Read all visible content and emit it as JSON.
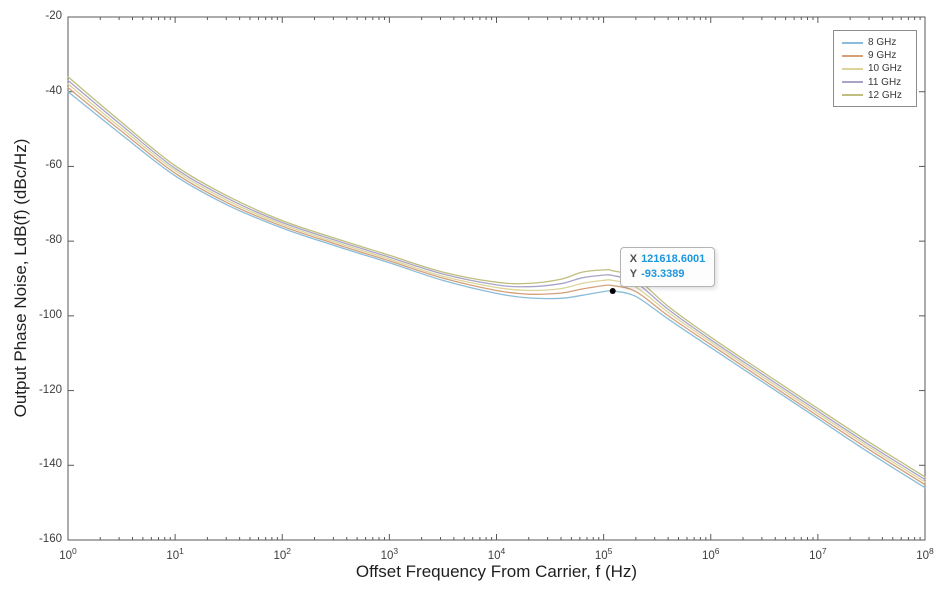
{
  "window": {
    "background": "#ffffff"
  },
  "chart_data": {
    "type": "line",
    "title": "",
    "xlabel": "Offset Frequency From Carrier, f (Hz)",
    "ylabel": "Output Phase Noise, LdB(f) (dBc/Hz)",
    "x_scale": "log10",
    "x_tick_base": "10",
    "x_tick_exponents": [
      0,
      1,
      2,
      3,
      4,
      5,
      6,
      7,
      8
    ],
    "y_ticks": [
      -20,
      -40,
      -60,
      -80,
      -100,
      -120,
      -140,
      -160
    ],
    "ylim": [
      -160,
      -20
    ],
    "xlim_exponents": [
      0,
      8
    ],
    "grid": false,
    "legend_position": "top-right",
    "axis_color": "#595959",
    "tick_label_color": "#3d3d3d",
    "axis_label_color": "#1f1f1f",
    "log10_x": [
      0,
      0.5,
      1,
      1.5,
      2,
      2.5,
      3,
      3.5,
      4,
      4.3,
      4.6,
      4.8,
      5,
      5.085,
      5.3,
      5.6,
      6,
      6.5,
      7,
      7.5,
      8
    ],
    "series": [
      {
        "name": "8 GHz",
        "color": "#8abcd9",
        "y": [
          -40.0,
          -51.5,
          -62.5,
          -70.5,
          -76.5,
          -81.3,
          -85.8,
          -90.5,
          -94.0,
          -95.2,
          -95.3,
          -94.5,
          -93.5,
          -93.34,
          -94.8,
          -100.8,
          -108.5,
          -118.0,
          -127.5,
          -137.0,
          -146.0
        ]
      },
      {
        "name": "9 GHz",
        "color": "#d4a07a",
        "y": [
          -38.9,
          -50.6,
          -61.8,
          -69.9,
          -76.0,
          -80.8,
          -85.3,
          -89.9,
          -93.2,
          -94.2,
          -93.9,
          -92.8,
          -91.9,
          -91.9,
          -93.5,
          -99.9,
          -107.7,
          -117.3,
          -126.8,
          -136.2,
          -145.2
        ]
      },
      {
        "name": "10 GHz",
        "color": "#dcd49a",
        "y": [
          -37.9,
          -49.8,
          -61.1,
          -69.3,
          -75.5,
          -80.3,
          -84.8,
          -89.4,
          -92.4,
          -93.2,
          -92.7,
          -91.3,
          -90.5,
          -90.5,
          -92.3,
          -99.0,
          -107.0,
          -116.6,
          -126.1,
          -135.5,
          -144.5
        ]
      },
      {
        "name": "11 GHz",
        "color": "#a8a4c8",
        "y": [
          -37.0,
          -49.0,
          -60.5,
          -68.7,
          -75.0,
          -79.8,
          -84.3,
          -88.8,
          -91.7,
          -92.2,
          -91.4,
          -89.8,
          -89.1,
          -89.2,
          -91.1,
          -98.2,
          -106.4,
          -116.0,
          -125.5,
          -134.9,
          -143.8
        ]
      },
      {
        "name": "12 GHz",
        "color": "#bfbe7e",
        "y": [
          -36.0,
          -48.2,
          -59.8,
          -68.1,
          -74.5,
          -79.3,
          -83.8,
          -88.3,
          -91.0,
          -91.3,
          -90.2,
          -88.3,
          -87.7,
          -87.9,
          -89.9,
          -97.4,
          -105.7,
          -115.3,
          -124.8,
          -134.2,
          -143.1
        ]
      }
    ],
    "datatip": {
      "x_label": "X",
      "y_label": "Y",
      "x_value": "121618.6001",
      "y_value": "-93.3389",
      "series": "8 GHz",
      "marker_color": "#000000",
      "value_color": "#1e96dd",
      "label_color": "#4f4f4f"
    }
  }
}
